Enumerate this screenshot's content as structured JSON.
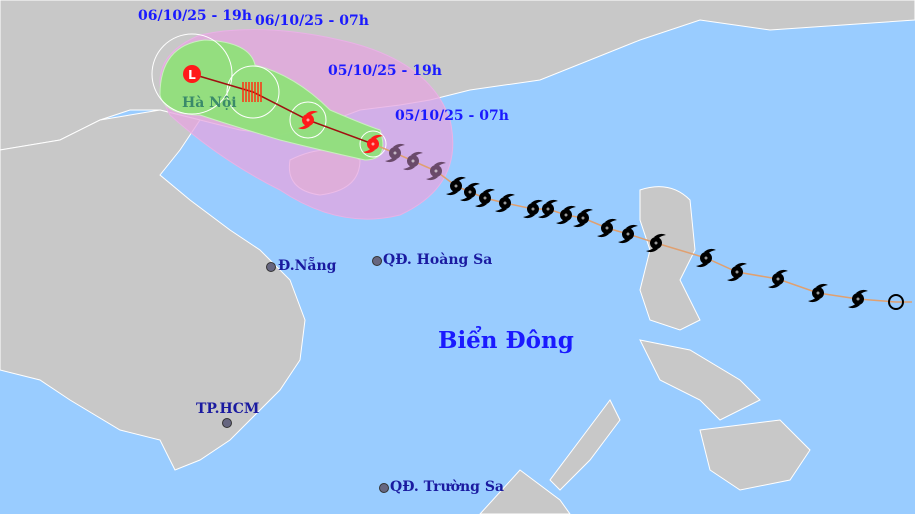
{
  "colors": {
    "sea": "#99ccff",
    "land": "#c8c8c8",
    "danger_zone": "#e6a6e0",
    "forecast_cone": "#8fe07a",
    "storm_current": "#ff1a1a",
    "past_track": "#000000",
    "labels": "#1a1aff"
  },
  "forecast_labels": [
    {
      "time": "06/10/25 - 19h",
      "symbol": "low-pressure-L"
    },
    {
      "time": "06/10/25 - 07h",
      "symbol": "tropical-depression-hatched"
    },
    {
      "time": "05/10/25 - 19h",
      "symbol": "storm-icon"
    },
    {
      "time": "05/10/25 - 07h",
      "symbol": "storm-icon-current"
    }
  ],
  "places": {
    "hanoi": "Hà Nội",
    "danang": "Đ.Nẵng",
    "hoangsa": "QĐ. Hoàng Sa",
    "hcm": "TP.HCM",
    "truongsa": "QĐ. Trường Sa"
  },
  "sea_name": "Biển Đông"
}
